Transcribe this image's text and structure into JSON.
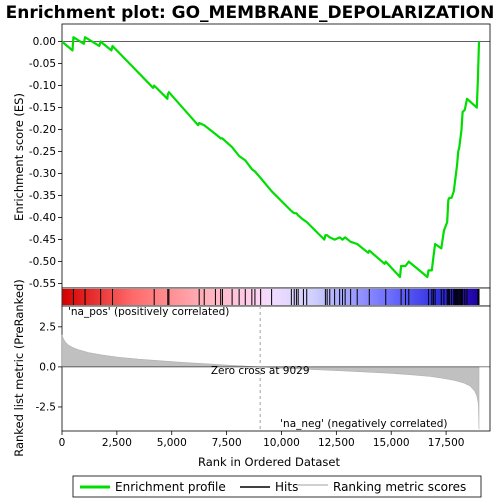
{
  "chart_data": {
    "type": "line",
    "title": "Enrichment plot: GO_MEMBRANE_DEPOLARIZATION",
    "xlabel": "Rank in Ordered Dataset",
    "ylabel_top": "Enrichment score (ES)",
    "ylabel_bottom": "Ranked list metric (PreRanked)",
    "x_range": [
      0,
      19500
    ],
    "x_ticks": [
      0,
      2500,
      5000,
      7500,
      10000,
      12500,
      15000,
      17500
    ],
    "x_tick_labels": [
      "0",
      "2,500",
      "5,000",
      "7,500",
      "10,000",
      "12,500",
      "15,000",
      "17,500"
    ],
    "es_ylim": [
      -0.56,
      0.04
    ],
    "es_ticks": [
      0.0,
      -0.05,
      -0.1,
      -0.15,
      -0.2,
      -0.25,
      -0.3,
      -0.35,
      -0.4,
      -0.45,
      -0.5,
      -0.55
    ],
    "es_tick_labels": [
      "0.00",
      "-0.05",
      "-0.10",
      "-0.15",
      "-0.20",
      "-0.25",
      "-0.30",
      "-0.35",
      "-0.40",
      "-0.45",
      "-0.50",
      "-0.55"
    ],
    "metric_ylim": [
      -4.0,
      3.8
    ],
    "metric_ticks": [
      2.5,
      0.0,
      -2.5
    ],
    "metric_tick_labels": [
      "2.5",
      "0.0",
      "-2.5"
    ],
    "zero_cross_rank": 9029,
    "zero_cross_label": "Zero cross at 9029",
    "pos_label": "'na_pos' (positively correlated)",
    "neg_label": "'na_neg' (negatively correlated)",
    "legend": [
      "Enrichment profile",
      "Hits",
      "Ranking metric scores"
    ],
    "colors": {
      "profile": "#00dd00",
      "hits": "#000000",
      "metric": "#c0c0c0",
      "pos_text": "#cc0000",
      "neg_text": "#0000cc",
      "zero_line": "#a0a0a0"
    },
    "hits": [
      520,
      1050,
      1760,
      2300,
      4200,
      4820,
      4870,
      6250,
      6480,
      6990,
      7230,
      7310,
      7750,
      8070,
      8350,
      8650,
      8790,
      9050,
      9550,
      10450,
      10580,
      10680,
      10760,
      11000,
      11150,
      12000,
      12080,
      12200,
      12420,
      12650,
      12780,
      12900,
      13150,
      13450,
      14000,
      14750,
      15450,
      15650,
      15800,
      16700,
      16850,
      16920,
      17000,
      17280,
      17400,
      17550,
      17600,
      17650,
      17750,
      17850,
      17900,
      17950,
      18000,
      18050,
      18100,
      18150,
      18200,
      18250,
      18350,
      18450,
      18950,
      19000
    ],
    "es_profile": [
      [
        0,
        0.0
      ],
      [
        480,
        -0.02
      ],
      [
        520,
        0.01
      ],
      [
        1000,
        -0.005
      ],
      [
        1050,
        0.01
      ],
      [
        1700,
        -0.01
      ],
      [
        1760,
        0.0
      ],
      [
        2250,
        -0.02
      ],
      [
        2300,
        -0.01
      ],
      [
        4150,
        -0.105
      ],
      [
        4200,
        -0.1
      ],
      [
        4800,
        -0.13
      ],
      [
        4820,
        -0.12
      ],
      [
        4870,
        -0.115
      ],
      [
        6200,
        -0.19
      ],
      [
        6250,
        -0.185
      ],
      [
        6480,
        -0.19
      ],
      [
        6990,
        -0.21
      ],
      [
        7230,
        -0.22
      ],
      [
        7310,
        -0.22
      ],
      [
        7750,
        -0.24
      ],
      [
        8070,
        -0.26
      ],
      [
        8350,
        -0.27
      ],
      [
        8650,
        -0.29
      ],
      [
        8790,
        -0.295
      ],
      [
        9050,
        -0.31
      ],
      [
        9550,
        -0.34
      ],
      [
        10450,
        -0.385
      ],
      [
        10580,
        -0.39
      ],
      [
        10680,
        -0.39
      ],
      [
        10760,
        -0.395
      ],
      [
        11000,
        -0.405
      ],
      [
        11150,
        -0.41
      ],
      [
        11950,
        -0.45
      ],
      [
        12000,
        -0.44
      ],
      [
        12080,
        -0.44
      ],
      [
        12200,
        -0.445
      ],
      [
        12420,
        -0.45
      ],
      [
        12650,
        -0.445
      ],
      [
        12780,
        -0.45
      ],
      [
        12900,
        -0.445
      ],
      [
        13150,
        -0.455
      ],
      [
        13450,
        -0.46
      ],
      [
        13950,
        -0.48
      ],
      [
        14000,
        -0.475
      ],
      [
        14700,
        -0.505
      ],
      [
        14750,
        -0.5
      ],
      [
        15400,
        -0.535
      ],
      [
        15450,
        -0.51
      ],
      [
        15650,
        -0.51
      ],
      [
        15800,
        -0.5
      ],
      [
        16650,
        -0.535
      ],
      [
        16700,
        -0.52
      ],
      [
        16850,
        -0.52
      ],
      [
        16920,
        -0.49
      ],
      [
        17000,
        -0.46
      ],
      [
        17280,
        -0.47
      ],
      [
        17400,
        -0.43
      ],
      [
        17550,
        -0.41
      ],
      [
        17600,
        -0.36
      ],
      [
        17650,
        -0.355
      ],
      [
        17750,
        -0.355
      ],
      [
        17850,
        -0.34
      ],
      [
        17900,
        -0.32
      ],
      [
        17950,
        -0.3
      ],
      [
        18000,
        -0.28
      ],
      [
        18050,
        -0.25
      ],
      [
        18100,
        -0.24
      ],
      [
        18150,
        -0.22
      ],
      [
        18200,
        -0.2
      ],
      [
        18250,
        -0.16
      ],
      [
        18350,
        -0.155
      ],
      [
        18450,
        -0.13
      ],
      [
        18900,
        -0.15
      ],
      [
        18950,
        -0.085
      ],
      [
        19000,
        0.0
      ]
    ],
    "metric_curve": [
      [
        0,
        2.0
      ],
      [
        50,
        1.8
      ],
      [
        150,
        1.55
      ],
      [
        300,
        1.35
      ],
      [
        500,
        1.2
      ],
      [
        800,
        1.05
      ],
      [
        1200,
        0.9
      ],
      [
        1800,
        0.75
      ],
      [
        2500,
        0.62
      ],
      [
        3500,
        0.48
      ],
      [
        4500,
        0.38
      ],
      [
        5500,
        0.28
      ],
      [
        6500,
        0.2
      ],
      [
        7500,
        0.12
      ],
      [
        8500,
        0.04
      ],
      [
        9029,
        0.0
      ],
      [
        10000,
        -0.08
      ],
      [
        11000,
        -0.14
      ],
      [
        12000,
        -0.2
      ],
      [
        13000,
        -0.26
      ],
      [
        14000,
        -0.33
      ],
      [
        15000,
        -0.4
      ],
      [
        16000,
        -0.5
      ],
      [
        16800,
        -0.6
      ],
      [
        17400,
        -0.72
      ],
      [
        17900,
        -0.85
      ],
      [
        18300,
        -1.0
      ],
      [
        18600,
        -1.2
      ],
      [
        18800,
        -1.5
      ],
      [
        18900,
        -1.8
      ],
      [
        18970,
        -2.3
      ],
      [
        19000,
        -3.9
      ]
    ]
  }
}
